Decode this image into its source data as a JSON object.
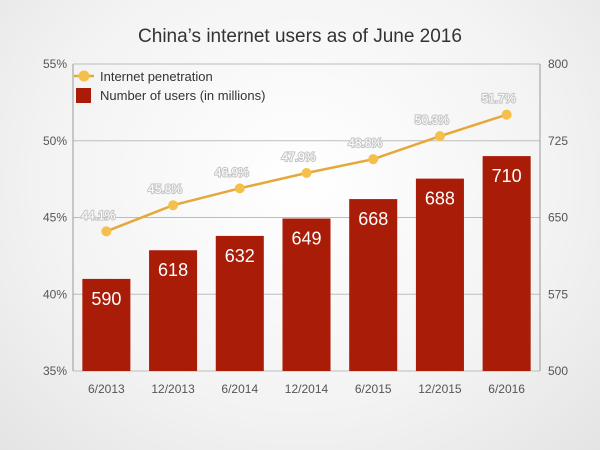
{
  "chart_data": {
    "type": "bar",
    "title": "China’s internet users as of June 2016",
    "categories": [
      "6/2013",
      "12/2013",
      "6/2014",
      "12/2014",
      "6/2015",
      "12/2015",
      "6/2016"
    ],
    "series": [
      {
        "name": "Number of users (in millions)",
        "type": "bar",
        "axis": "right",
        "values": [
          590,
          618,
          632,
          649,
          668,
          688,
          710
        ],
        "labels": [
          "590",
          "618",
          "632",
          "649",
          "668",
          "688",
          "710"
        ],
        "color": "#a91c08"
      },
      {
        "name": "Internet penetration",
        "type": "line",
        "axis": "left",
        "values": [
          44.1,
          45.8,
          46.9,
          47.9,
          48.8,
          50.3,
          51.7
        ],
        "labels": [
          "44.1%",
          "45.8%",
          "46.9%",
          "47.9%",
          "48.8%",
          "50.3%",
          "51.7%"
        ],
        "color": "#e4a93a"
      }
    ],
    "y_left": {
      "min": 35,
      "max": 55,
      "ticks": [
        "35%",
        "40%",
        "45%",
        "50%",
        "55%"
      ]
    },
    "y_right": {
      "min": 500,
      "max": 800,
      "ticks": [
        "500",
        "575",
        "650",
        "725",
        "800"
      ]
    },
    "grid": true,
    "legend_position": "top-left"
  }
}
